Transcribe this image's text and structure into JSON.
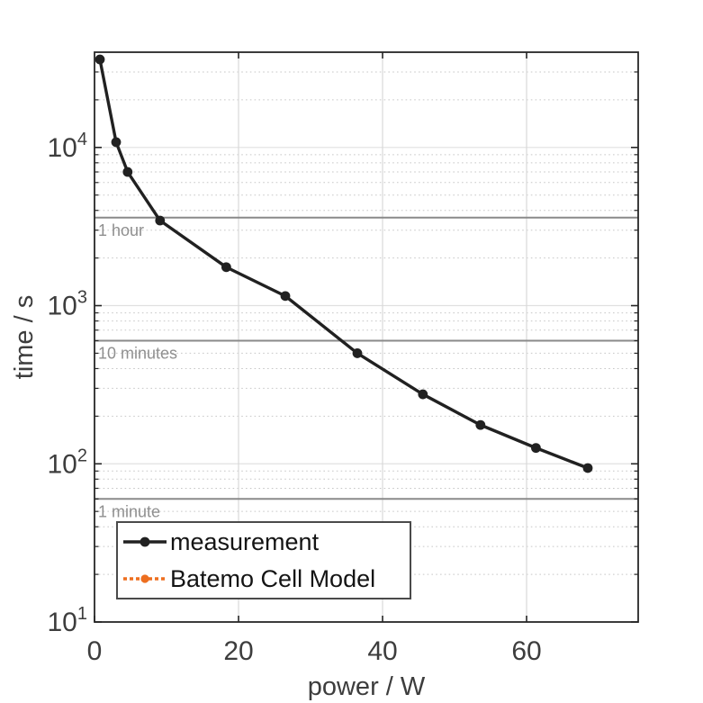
{
  "figure": {
    "background": "#ffffff"
  },
  "chart_data": {
    "type": "line",
    "title": "",
    "xlabel": "power / W",
    "ylabel": "time / s",
    "xlim": [
      0,
      75.5
    ],
    "ylim": [
      10,
      40000
    ],
    "yscale": "log",
    "x_ticks": [
      0,
      20,
      40,
      60
    ],
    "y_ticks": [
      10,
      100,
      1000,
      10000
    ],
    "grid": {
      "major": true,
      "minor_log_dotted": true,
      "vertical_at_x_ticks": true
    },
    "legend_position": "lower-left",
    "series": [
      {
        "name": "measurement",
        "color": "#212121",
        "line_style": "solid",
        "marker": "circle",
        "x": [
          0.75,
          3.0,
          4.6,
          9.1,
          18.3,
          26.5,
          36.5,
          45.6,
          53.6,
          61.3,
          68.5
        ],
        "y": [
          36000,
          10800,
          7000,
          3450,
          1750,
          1150,
          500,
          275,
          176,
          126,
          94
        ]
      },
      {
        "name": "Batemo Cell Model",
        "color": "#ED6E1F",
        "line_style": "dotted",
        "marker": "circle",
        "x": [],
        "y": []
      }
    ],
    "annotations": [
      {
        "label": "1 hour",
        "seconds": 3600
      },
      {
        "label": "10 minutes",
        "seconds": 600
      },
      {
        "label": "1 minute",
        "seconds": 60
      }
    ],
    "colors": {
      "frame": "#262626",
      "tick_label": "#3d3d3d",
      "axis_title": "#3d3d3d",
      "grid_major": "#e0e0e0",
      "grid_minor": "#c7c7c7",
      "grid_vertical": "#d9d9d9",
      "annotation_line": "#8a8a8a",
      "annotation_text": "#8f8f8f"
    }
  }
}
